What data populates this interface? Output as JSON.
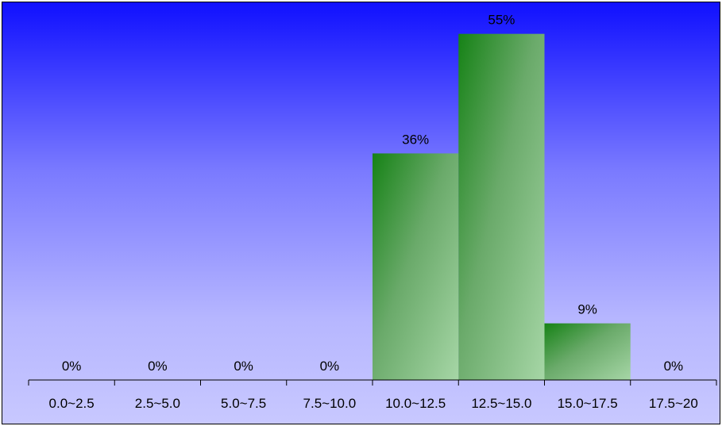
{
  "chart_data": {
    "type": "bar",
    "categories": [
      "0.0~2.5",
      "2.5~5.0",
      "5.0~7.5",
      "7.5~10.0",
      "10.0~12.5",
      "12.5~15.0",
      "15.0~17.5",
      "17.5~20"
    ],
    "values": [
      0,
      0,
      0,
      0,
      36,
      55,
      9,
      0
    ],
    "value_labels": [
      "0%",
      "0%",
      "0%",
      "0%",
      "36%",
      "55%",
      "9%",
      "0%"
    ],
    "title": "",
    "xlabel": "",
    "ylabel": "",
    "ylim": [
      0,
      60
    ],
    "grid": false,
    "legend": "none",
    "colors": {
      "background_top": "#1010ff",
      "background_bottom": "#c8c8ff",
      "bar_dark": "#168216",
      "bar_light": "#a6d6a6",
      "axis": "#000000"
    }
  }
}
